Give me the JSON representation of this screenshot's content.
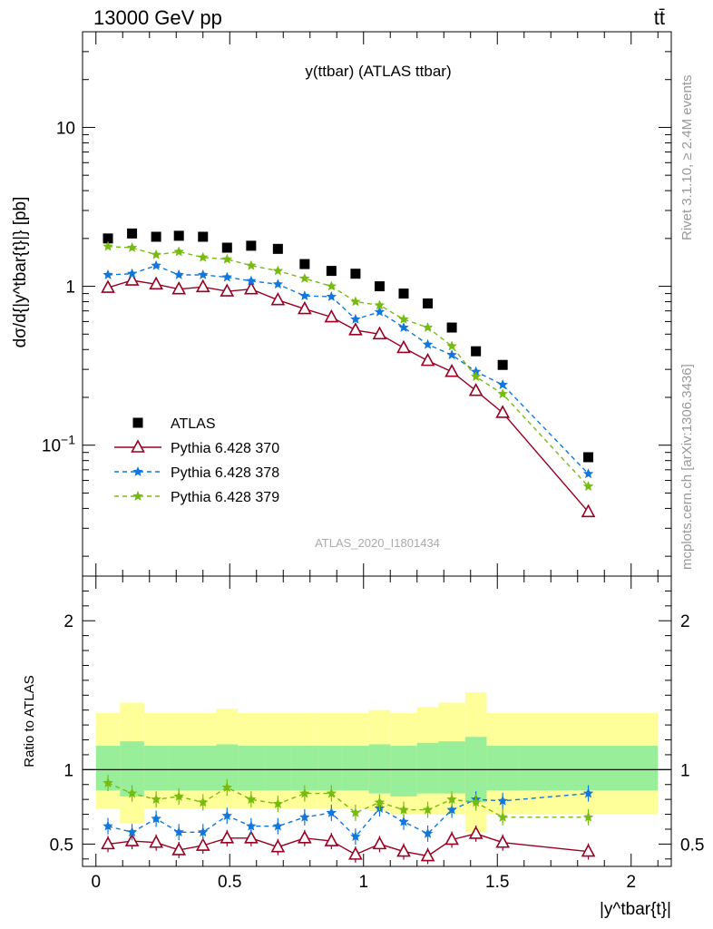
{
  "header": {
    "energy_label": "13000 GeV pp",
    "process_label": "tt̄"
  },
  "side_labels": {
    "rivet": "Rivet 3.1.10, ≥ 2.4M events",
    "mcplots": "mcplots.cern.ch [arXiv:1306.3436]"
  },
  "chart_data": [
    {
      "type": "scatter",
      "title": "y(ttbar) (ATLAS ttbar)",
      "watermark": "ATLAS_2020_I1801434",
      "ylabel": "dσ/d{|y^tbar{t}|} [pb]",
      "xlabel": "|y^tbar{t}|",
      "yscale": "log",
      "xlim": [
        -0.05,
        2.15
      ],
      "ylim": [
        0.015,
        40
      ],
      "yticks": [
        {
          "value": 10,
          "label": "10"
        },
        {
          "value": 1,
          "label": "1"
        },
        {
          "value": 0.1,
          "label": "10^-1"
        }
      ],
      "x": [
        0.045,
        0.135,
        0.225,
        0.31,
        0.4,
        0.49,
        0.58,
        0.68,
        0.78,
        0.88,
        0.97,
        1.06,
        1.15,
        1.24,
        1.33,
        1.42,
        1.52,
        1.84
      ],
      "series": [
        {
          "name": "ATLAS",
          "color": "#000000",
          "marker": "square",
          "values": [
            2.0,
            2.15,
            2.05,
            2.08,
            2.05,
            1.75,
            1.8,
            1.72,
            1.38,
            1.25,
            1.2,
            1.0,
            0.9,
            0.78,
            0.55,
            0.39,
            0.32,
            0.084
          ]
        },
        {
          "name": "Pythia 6.428 370",
          "color": "#990022",
          "marker": "triangle",
          "line": "solid",
          "values": [
            0.98,
            1.09,
            1.03,
            0.96,
            0.99,
            0.93,
            0.96,
            0.82,
            0.72,
            0.64,
            0.53,
            0.5,
            0.41,
            0.34,
            0.29,
            0.22,
            0.16,
            0.038
          ]
        },
        {
          "name": "Pythia 6.428 378",
          "color": "#1177dd",
          "marker": "star",
          "line": "dashed",
          "values": [
            1.18,
            1.2,
            1.35,
            1.18,
            1.18,
            1.14,
            1.08,
            1.03,
            0.87,
            0.86,
            0.62,
            0.69,
            0.55,
            0.43,
            0.37,
            0.29,
            0.24,
            0.066
          ]
        },
        {
          "name": "Pythia 6.428 379",
          "color": "#77bb11",
          "marker": "star",
          "line": "dashed",
          "values": [
            1.78,
            1.75,
            1.58,
            1.65,
            1.52,
            1.48,
            1.35,
            1.25,
            1.12,
            1.0,
            0.8,
            0.76,
            0.62,
            0.55,
            0.42,
            0.27,
            0.21,
            0.055
          ]
        }
      ]
    },
    {
      "type": "scatter",
      "ylabel": "Ratio to ATLAS",
      "xlabel": "|y^tbar{t}|",
      "xlim": [
        -0.05,
        2.15
      ],
      "ylim": [
        0.35,
        2.3
      ],
      "yticks": [
        0.5,
        1,
        2
      ],
      "xticks": [
        0,
        0.5,
        1,
        1.5,
        2
      ],
      "x": [
        0.045,
        0.135,
        0.225,
        0.31,
        0.4,
        0.49,
        0.58,
        0.68,
        0.78,
        0.88,
        0.97,
        1.06,
        1.15,
        1.24,
        1.33,
        1.42,
        1.52,
        1.84
      ],
      "bin_edges": [
        0.0,
        0.09,
        0.18,
        0.27,
        0.35,
        0.45,
        0.53,
        0.63,
        0.73,
        0.83,
        0.92,
        1.02,
        1.1,
        1.2,
        1.28,
        1.38,
        1.46,
        1.58,
        2.1
      ],
      "bands": {
        "yellow_lo": [
          0.74,
          0.64,
          0.74,
          0.74,
          0.74,
          0.74,
          0.74,
          0.74,
          0.74,
          0.74,
          0.74,
          0.72,
          0.7,
          0.7,
          0.7,
          0.58,
          0.7,
          0.7
        ],
        "yellow_hi": [
          1.38,
          1.45,
          1.38,
          1.38,
          1.38,
          1.41,
          1.38,
          1.38,
          1.38,
          1.38,
          1.38,
          1.4,
          1.38,
          1.42,
          1.45,
          1.52,
          1.38,
          1.38
        ],
        "green_lo": [
          0.86,
          0.82,
          0.86,
          0.86,
          0.86,
          0.86,
          0.86,
          0.86,
          0.86,
          0.86,
          0.86,
          0.84,
          0.82,
          0.84,
          0.84,
          0.78,
          0.86,
          0.86
        ],
        "green_hi": [
          1.16,
          1.19,
          1.16,
          1.16,
          1.16,
          1.17,
          1.16,
          1.16,
          1.16,
          1.16,
          1.16,
          1.17,
          1.16,
          1.18,
          1.19,
          1.22,
          1.16,
          1.16
        ]
      },
      "series": [
        {
          "name": "Pythia 6.428 370",
          "color": "#990022",
          "marker": "triangle",
          "line": "solid",
          "values": [
            0.5,
            0.52,
            0.51,
            0.46,
            0.49,
            0.54,
            0.54,
            0.48,
            0.54,
            0.52,
            0.43,
            0.5,
            0.45,
            0.42,
            0.53,
            0.57,
            0.51,
            0.45
          ]
        },
        {
          "name": "Pythia 6.428 378",
          "color": "#1177dd",
          "marker": "star",
          "line": "dashed",
          "values": [
            0.62,
            0.58,
            0.67,
            0.58,
            0.58,
            0.69,
            0.62,
            0.62,
            0.68,
            0.71,
            0.55,
            0.74,
            0.65,
            0.57,
            0.73,
            0.8,
            0.79,
            0.84
          ]
        },
        {
          "name": "Pythia 6.428 379",
          "color": "#77bb11",
          "marker": "star",
          "line": "dashed",
          "values": [
            0.91,
            0.84,
            0.8,
            0.82,
            0.78,
            0.88,
            0.8,
            0.77,
            0.84,
            0.84,
            0.71,
            0.78,
            0.73,
            0.73,
            0.8,
            0.78,
            0.68,
            0.68
          ]
        }
      ]
    }
  ]
}
